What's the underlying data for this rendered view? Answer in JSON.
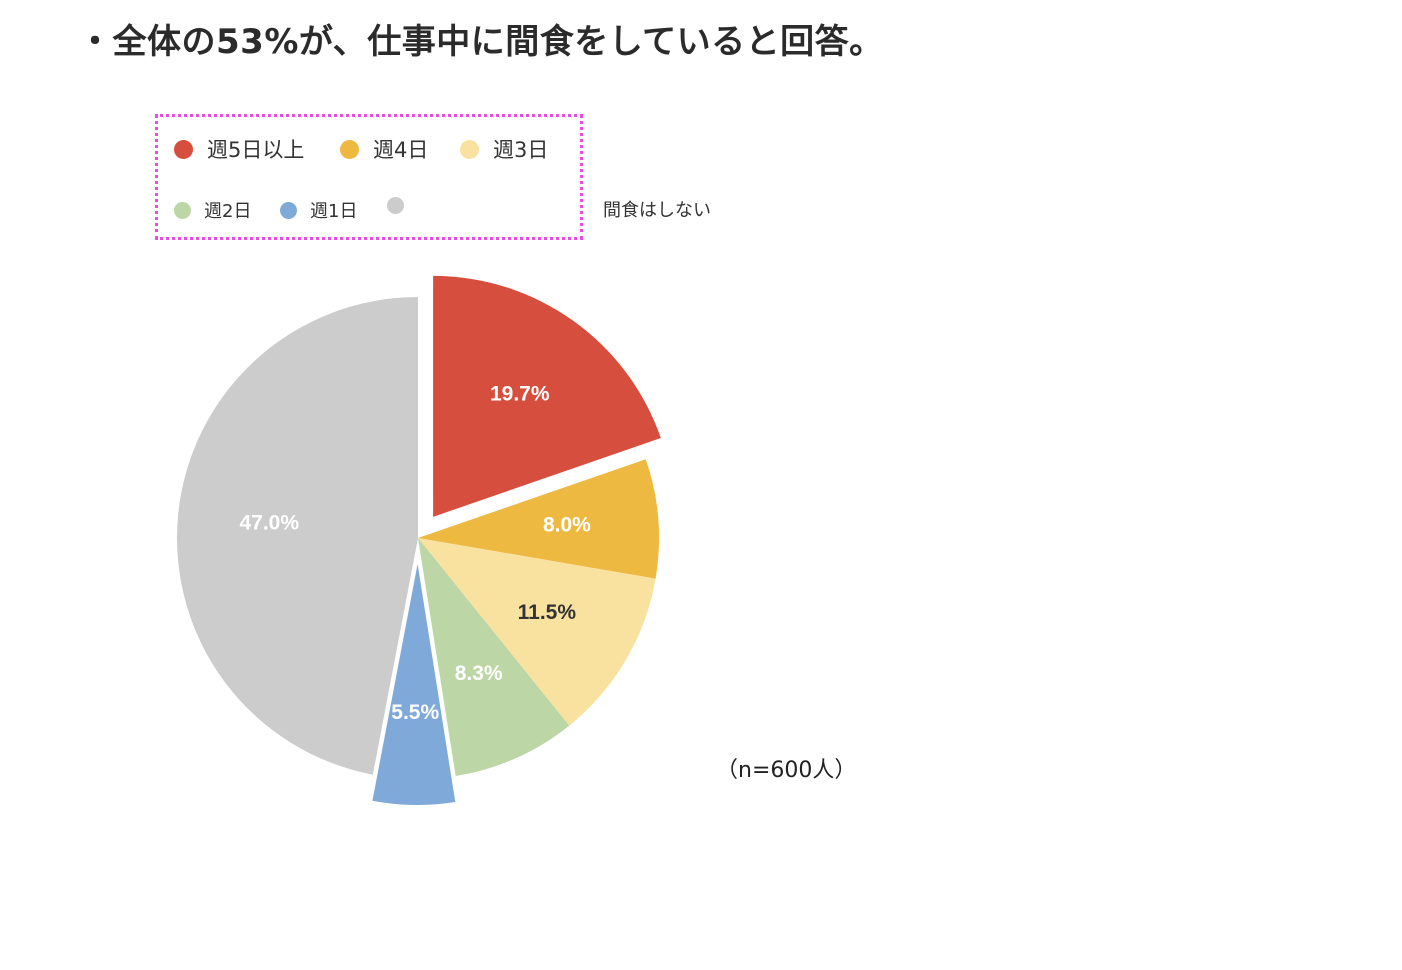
{
  "headline": "・全体の53%が、仕事中に間食をしていると回答。",
  "note": "（n=600人）",
  "chart_data": {
    "type": "pie",
    "categories": [
      "週5日以上",
      "週4日",
      "週3日",
      "週2日",
      "週1日",
      "間食はしない"
    ],
    "values": [
      19.7,
      8.0,
      11.5,
      8.3,
      5.5,
      47.0
    ],
    "labels": [
      "19.7%",
      "8.0%",
      "11.5%",
      "8.3%",
      "5.5%",
      "47.0%"
    ],
    "colors": [
      "#d64f3e",
      "#eeb940",
      "#f9e19f",
      "#bcd6a6",
      "#7fa9d8",
      "#cccccc"
    ],
    "label_colors": [
      "#ffffff",
      "#ffffff",
      "#333333",
      "#ffffff",
      "#ffffff",
      "#ffffff"
    ],
    "exploded": [
      true,
      false,
      false,
      false,
      true,
      false
    ],
    "start": "12 o'clock",
    "direction": "clockwise",
    "legend_placement": "top"
  }
}
